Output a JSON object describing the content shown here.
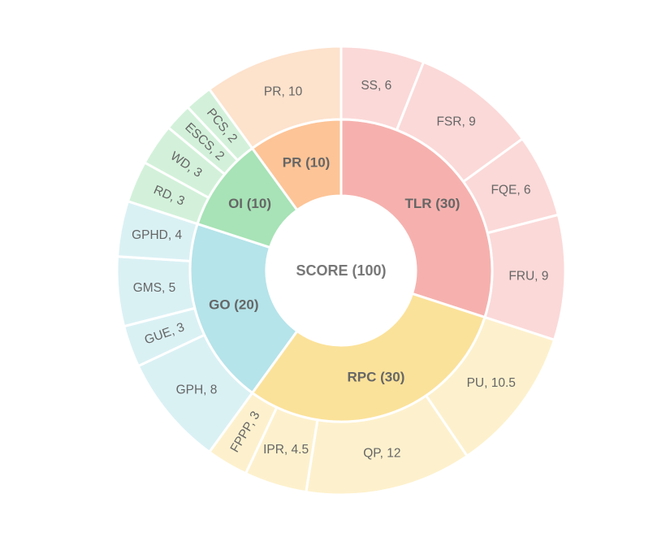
{
  "chart_data": {
    "type": "sunburst",
    "center_label": "SCORE (100)",
    "categories": [
      {
        "name": "TLR",
        "label": "TLR (30)",
        "value": 30,
        "color": "#f6b1ae",
        "light": "#fbd9d8",
        "children": [
          {
            "name": "SS",
            "label": "SS, 6",
            "value": 6
          },
          {
            "name": "FSR",
            "label": "FSR, 9",
            "value": 9
          },
          {
            "name": "FQE",
            "label": "FQE, 6",
            "value": 6
          },
          {
            "name": "FRU",
            "label": "FRU, 9",
            "value": 9
          }
        ]
      },
      {
        "name": "RPC",
        "label": "RPC (30)",
        "value": 30,
        "color": "#fbe29a",
        "light": "#fdf1cd",
        "children": [
          {
            "name": "PU",
            "label": "PU, 10.5",
            "value": 10.5
          },
          {
            "name": "QP",
            "label": "QP, 12",
            "value": 12
          },
          {
            "name": "IPR",
            "label": "IPR, 4.5",
            "value": 4.5
          },
          {
            "name": "FPPP",
            "label": "FPPP, 3",
            "value": 3
          }
        ]
      },
      {
        "name": "GO",
        "label": "GO (20)",
        "value": 20,
        "color": "#b5e4ea",
        "light": "#daf1f4",
        "children": [
          {
            "name": "GPH",
            "label": "GPH, 8",
            "value": 8
          },
          {
            "name": "GUE",
            "label": "GUE, 3",
            "value": 3
          },
          {
            "name": "GMS",
            "label": "GMS, 5",
            "value": 5
          },
          {
            "name": "GPHD",
            "label": "GPHD, 4",
            "value": 4
          }
        ]
      },
      {
        "name": "OI",
        "label": "OI (10)",
        "value": 10,
        "color": "#a7e3b6",
        "light": "#d3f1da",
        "children": [
          {
            "name": "RD",
            "label": "RD, 3",
            "value": 3
          },
          {
            "name": "WD",
            "label": "WD, 3",
            "value": 3
          },
          {
            "name": "ESCS",
            "label": "ESCS, 2",
            "value": 2
          },
          {
            "name": "PCS",
            "label": "PCS, 2",
            "value": 2
          }
        ]
      },
      {
        "name": "PR",
        "label": "PR (10)",
        "value": 10,
        "color": "#fdc497",
        "light": "#fde2cc",
        "children": [
          {
            "name": "PR",
            "label": "PR, 10",
            "value": 10
          }
        ]
      }
    ]
  }
}
